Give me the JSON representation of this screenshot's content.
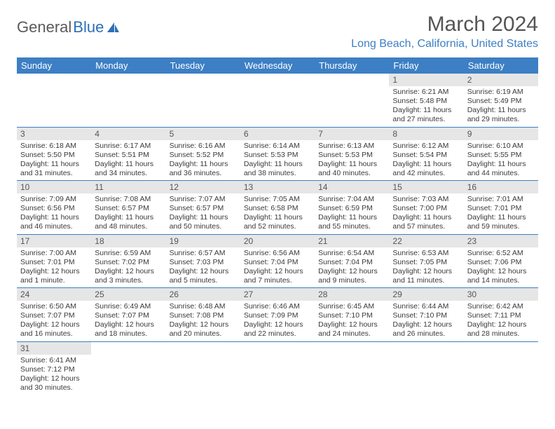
{
  "logo": {
    "part1": "General",
    "part2": "Blue"
  },
  "title": "March 2024",
  "location": "Long Beach, California, United States",
  "dow": [
    "Sunday",
    "Monday",
    "Tuesday",
    "Wednesday",
    "Thursday",
    "Friday",
    "Saturday"
  ],
  "colors": {
    "header_bg": "#3d7fc4",
    "daynum_bg": "#e6e6e6",
    "accent": "#3d7fc4"
  },
  "weeks": [
    [
      null,
      null,
      null,
      null,
      null,
      {
        "n": "1",
        "sr": "Sunrise: 6:21 AM",
        "ss": "Sunset: 5:48 PM",
        "d1": "Daylight: 11 hours",
        "d2": "and 27 minutes."
      },
      {
        "n": "2",
        "sr": "Sunrise: 6:19 AM",
        "ss": "Sunset: 5:49 PM",
        "d1": "Daylight: 11 hours",
        "d2": "and 29 minutes."
      }
    ],
    [
      {
        "n": "3",
        "sr": "Sunrise: 6:18 AM",
        "ss": "Sunset: 5:50 PM",
        "d1": "Daylight: 11 hours",
        "d2": "and 31 minutes."
      },
      {
        "n": "4",
        "sr": "Sunrise: 6:17 AM",
        "ss": "Sunset: 5:51 PM",
        "d1": "Daylight: 11 hours",
        "d2": "and 34 minutes."
      },
      {
        "n": "5",
        "sr": "Sunrise: 6:16 AM",
        "ss": "Sunset: 5:52 PM",
        "d1": "Daylight: 11 hours",
        "d2": "and 36 minutes."
      },
      {
        "n": "6",
        "sr": "Sunrise: 6:14 AM",
        "ss": "Sunset: 5:53 PM",
        "d1": "Daylight: 11 hours",
        "d2": "and 38 minutes."
      },
      {
        "n": "7",
        "sr": "Sunrise: 6:13 AM",
        "ss": "Sunset: 5:53 PM",
        "d1": "Daylight: 11 hours",
        "d2": "and 40 minutes."
      },
      {
        "n": "8",
        "sr": "Sunrise: 6:12 AM",
        "ss": "Sunset: 5:54 PM",
        "d1": "Daylight: 11 hours",
        "d2": "and 42 minutes."
      },
      {
        "n": "9",
        "sr": "Sunrise: 6:10 AM",
        "ss": "Sunset: 5:55 PM",
        "d1": "Daylight: 11 hours",
        "d2": "and 44 minutes."
      }
    ],
    [
      {
        "n": "10",
        "sr": "Sunrise: 7:09 AM",
        "ss": "Sunset: 6:56 PM",
        "d1": "Daylight: 11 hours",
        "d2": "and 46 minutes."
      },
      {
        "n": "11",
        "sr": "Sunrise: 7:08 AM",
        "ss": "Sunset: 6:57 PM",
        "d1": "Daylight: 11 hours",
        "d2": "and 48 minutes."
      },
      {
        "n": "12",
        "sr": "Sunrise: 7:07 AM",
        "ss": "Sunset: 6:57 PM",
        "d1": "Daylight: 11 hours",
        "d2": "and 50 minutes."
      },
      {
        "n": "13",
        "sr": "Sunrise: 7:05 AM",
        "ss": "Sunset: 6:58 PM",
        "d1": "Daylight: 11 hours",
        "d2": "and 52 minutes."
      },
      {
        "n": "14",
        "sr": "Sunrise: 7:04 AM",
        "ss": "Sunset: 6:59 PM",
        "d1": "Daylight: 11 hours",
        "d2": "and 55 minutes."
      },
      {
        "n": "15",
        "sr": "Sunrise: 7:03 AM",
        "ss": "Sunset: 7:00 PM",
        "d1": "Daylight: 11 hours",
        "d2": "and 57 minutes."
      },
      {
        "n": "16",
        "sr": "Sunrise: 7:01 AM",
        "ss": "Sunset: 7:01 PM",
        "d1": "Daylight: 11 hours",
        "d2": "and 59 minutes."
      }
    ],
    [
      {
        "n": "17",
        "sr": "Sunrise: 7:00 AM",
        "ss": "Sunset: 7:01 PM",
        "d1": "Daylight: 12 hours",
        "d2": "and 1 minute."
      },
      {
        "n": "18",
        "sr": "Sunrise: 6:59 AM",
        "ss": "Sunset: 7:02 PM",
        "d1": "Daylight: 12 hours",
        "d2": "and 3 minutes."
      },
      {
        "n": "19",
        "sr": "Sunrise: 6:57 AM",
        "ss": "Sunset: 7:03 PM",
        "d1": "Daylight: 12 hours",
        "d2": "and 5 minutes."
      },
      {
        "n": "20",
        "sr": "Sunrise: 6:56 AM",
        "ss": "Sunset: 7:04 PM",
        "d1": "Daylight: 12 hours",
        "d2": "and 7 minutes."
      },
      {
        "n": "21",
        "sr": "Sunrise: 6:54 AM",
        "ss": "Sunset: 7:04 PM",
        "d1": "Daylight: 12 hours",
        "d2": "and 9 minutes."
      },
      {
        "n": "22",
        "sr": "Sunrise: 6:53 AM",
        "ss": "Sunset: 7:05 PM",
        "d1": "Daylight: 12 hours",
        "d2": "and 11 minutes."
      },
      {
        "n": "23",
        "sr": "Sunrise: 6:52 AM",
        "ss": "Sunset: 7:06 PM",
        "d1": "Daylight: 12 hours",
        "d2": "and 14 minutes."
      }
    ],
    [
      {
        "n": "24",
        "sr": "Sunrise: 6:50 AM",
        "ss": "Sunset: 7:07 PM",
        "d1": "Daylight: 12 hours",
        "d2": "and 16 minutes."
      },
      {
        "n": "25",
        "sr": "Sunrise: 6:49 AM",
        "ss": "Sunset: 7:07 PM",
        "d1": "Daylight: 12 hours",
        "d2": "and 18 minutes."
      },
      {
        "n": "26",
        "sr": "Sunrise: 6:48 AM",
        "ss": "Sunset: 7:08 PM",
        "d1": "Daylight: 12 hours",
        "d2": "and 20 minutes."
      },
      {
        "n": "27",
        "sr": "Sunrise: 6:46 AM",
        "ss": "Sunset: 7:09 PM",
        "d1": "Daylight: 12 hours",
        "d2": "and 22 minutes."
      },
      {
        "n": "28",
        "sr": "Sunrise: 6:45 AM",
        "ss": "Sunset: 7:10 PM",
        "d1": "Daylight: 12 hours",
        "d2": "and 24 minutes."
      },
      {
        "n": "29",
        "sr": "Sunrise: 6:44 AM",
        "ss": "Sunset: 7:10 PM",
        "d1": "Daylight: 12 hours",
        "d2": "and 26 minutes."
      },
      {
        "n": "30",
        "sr": "Sunrise: 6:42 AM",
        "ss": "Sunset: 7:11 PM",
        "d1": "Daylight: 12 hours",
        "d2": "and 28 minutes."
      }
    ],
    [
      {
        "n": "31",
        "sr": "Sunrise: 6:41 AM",
        "ss": "Sunset: 7:12 PM",
        "d1": "Daylight: 12 hours",
        "d2": "and 30 minutes."
      },
      null,
      null,
      null,
      null,
      null,
      null
    ]
  ]
}
